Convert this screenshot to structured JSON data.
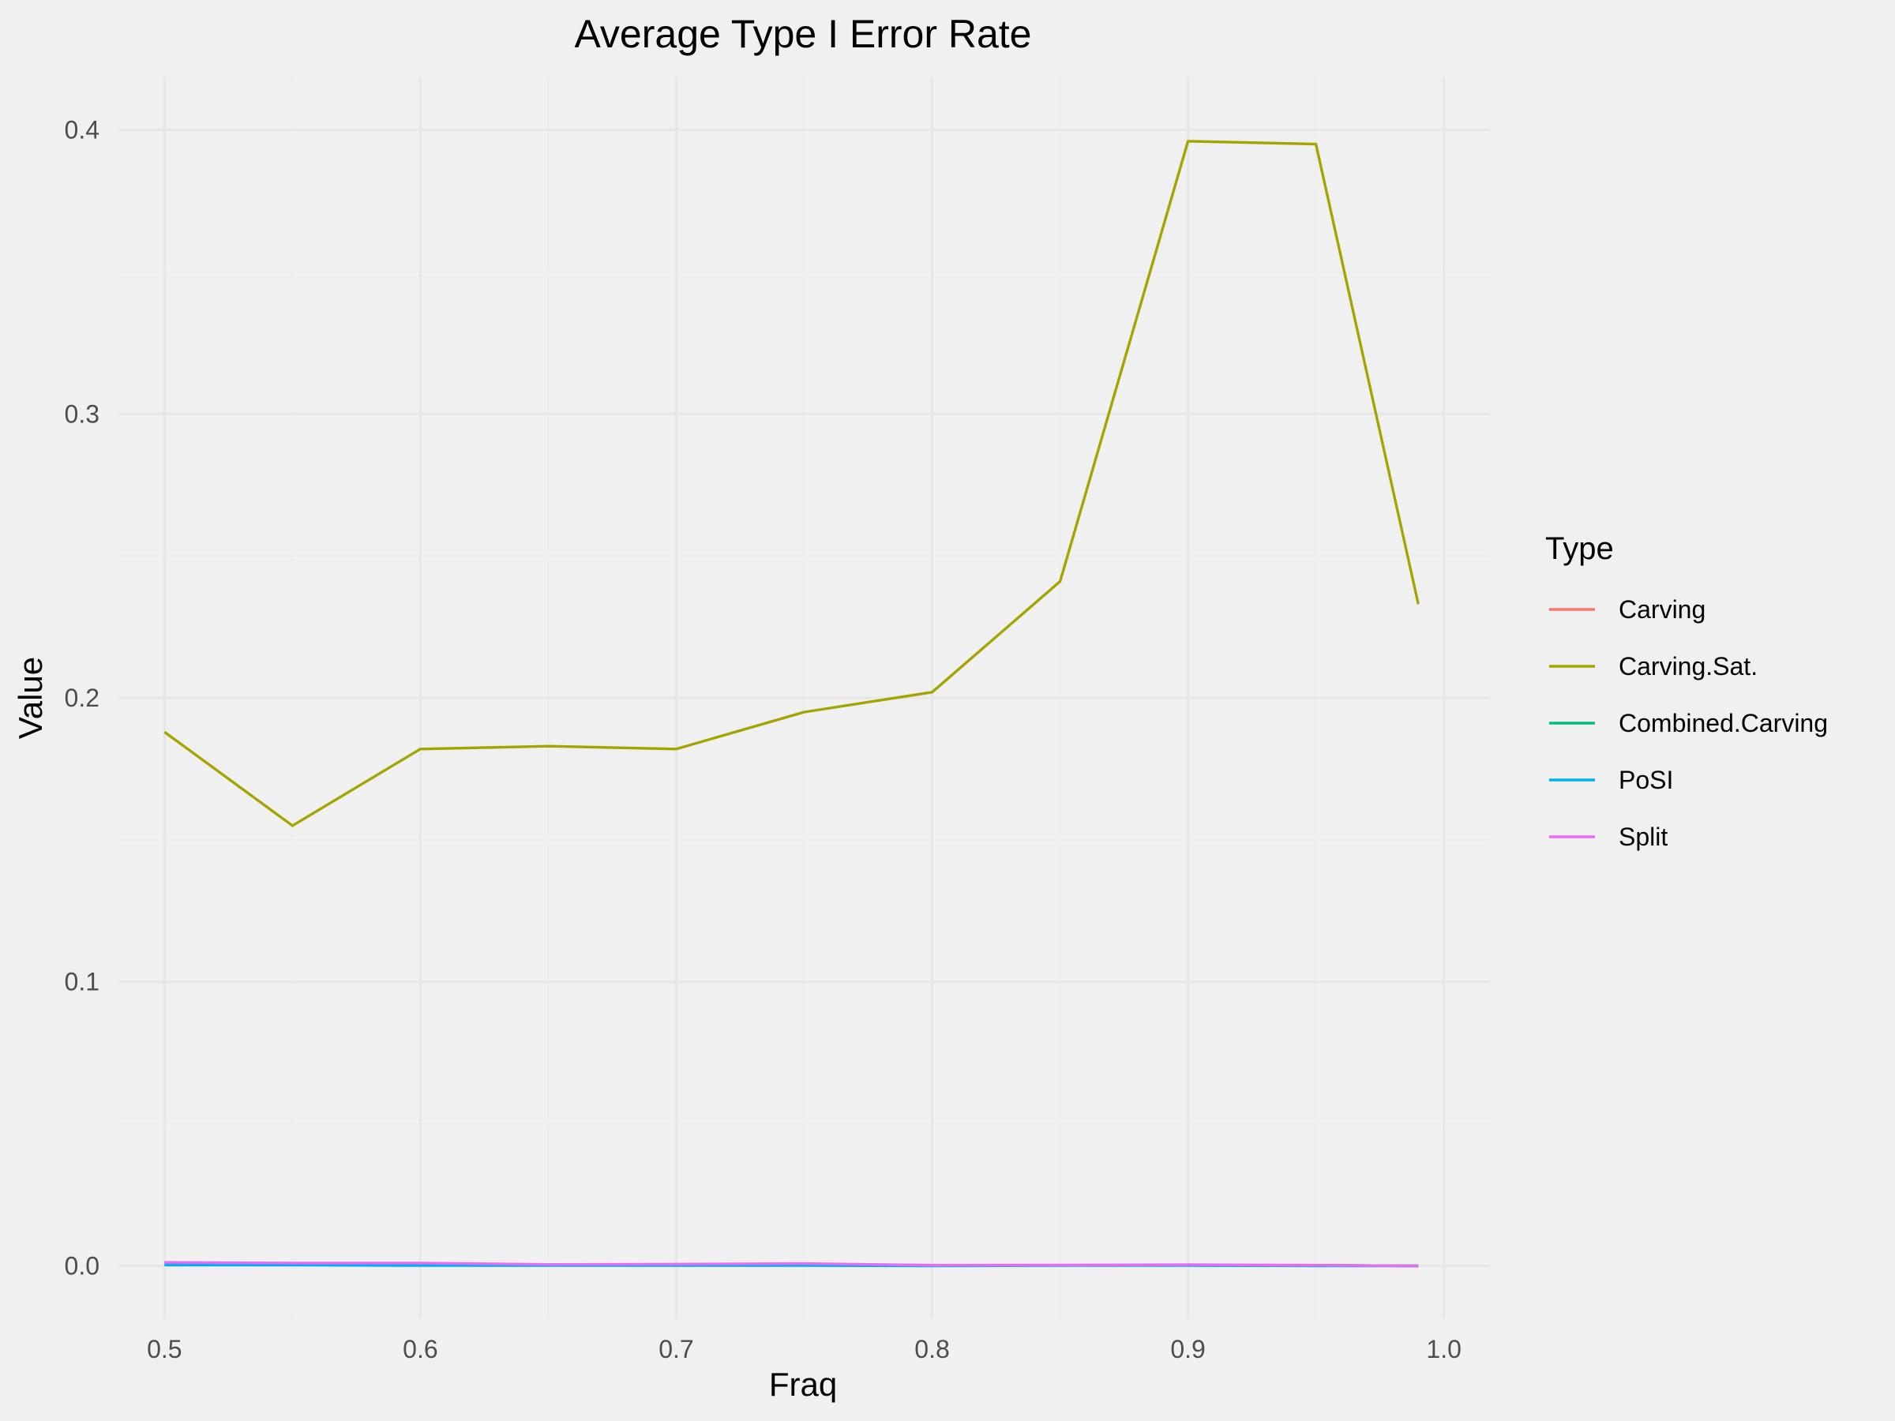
{
  "chart_data": {
    "type": "line",
    "title": "Average Type I Error Rate",
    "xlabel": "Fraq",
    "ylabel": "Value",
    "xlim": [
      0.482,
      1.018
    ],
    "ylim": [
      -0.0185,
      0.4185
    ],
    "x_ticks": [
      0.5,
      0.6,
      0.7,
      0.8,
      0.9,
      1.0
    ],
    "x_tick_labels": [
      "0.5",
      "0.6",
      "0.7",
      "0.8",
      "0.9",
      "1.0"
    ],
    "y_ticks": [
      0.0,
      0.1,
      0.2,
      0.3,
      0.4
    ],
    "y_tick_labels": [
      "0.0",
      "0.1",
      "0.2",
      "0.3",
      "0.4"
    ],
    "grid": true,
    "legend": {
      "title": "Type",
      "position": "right"
    },
    "x": [
      0.5,
      0.55,
      0.6,
      0.65,
      0.7,
      0.75,
      0.8,
      0.85,
      0.9,
      0.95,
      0.99
    ],
    "series": [
      {
        "name": "Carving",
        "color": "#F8766D",
        "values": [
          0.001,
          0.0008,
          0.0006,
          0.0004,
          0.0004,
          0.0004,
          0.0002,
          0.0002,
          0.0002,
          0.0002,
          0.0
        ]
      },
      {
        "name": "Carving.Sat.",
        "color": "#A3A500",
        "values": [
          0.188,
          0.155,
          0.182,
          0.183,
          0.182,
          0.195,
          0.202,
          0.241,
          0.396,
          0.395,
          0.233
        ]
      },
      {
        "name": "Combined.Carving",
        "color": "#00BF7D",
        "values": [
          0.001,
          0.0008,
          0.0006,
          0.0004,
          0.0004,
          0.0004,
          0.0002,
          0.0002,
          0.0002,
          0.0002,
          0.0
        ]
      },
      {
        "name": "PoSI",
        "color": "#00B0F6",
        "values": [
          0.0003,
          0.0003,
          0.0001,
          0.0001,
          0.0001,
          0.0001,
          0.0,
          0.0001,
          0.0001,
          0.0,
          0.0
        ]
      },
      {
        "name": "Split",
        "color": "#E76BF3",
        "values": [
          0.0012,
          0.001,
          0.001,
          0.0005,
          0.0006,
          0.0008,
          0.0002,
          0.0003,
          0.0004,
          0.0002,
          0.0
        ]
      }
    ]
  }
}
